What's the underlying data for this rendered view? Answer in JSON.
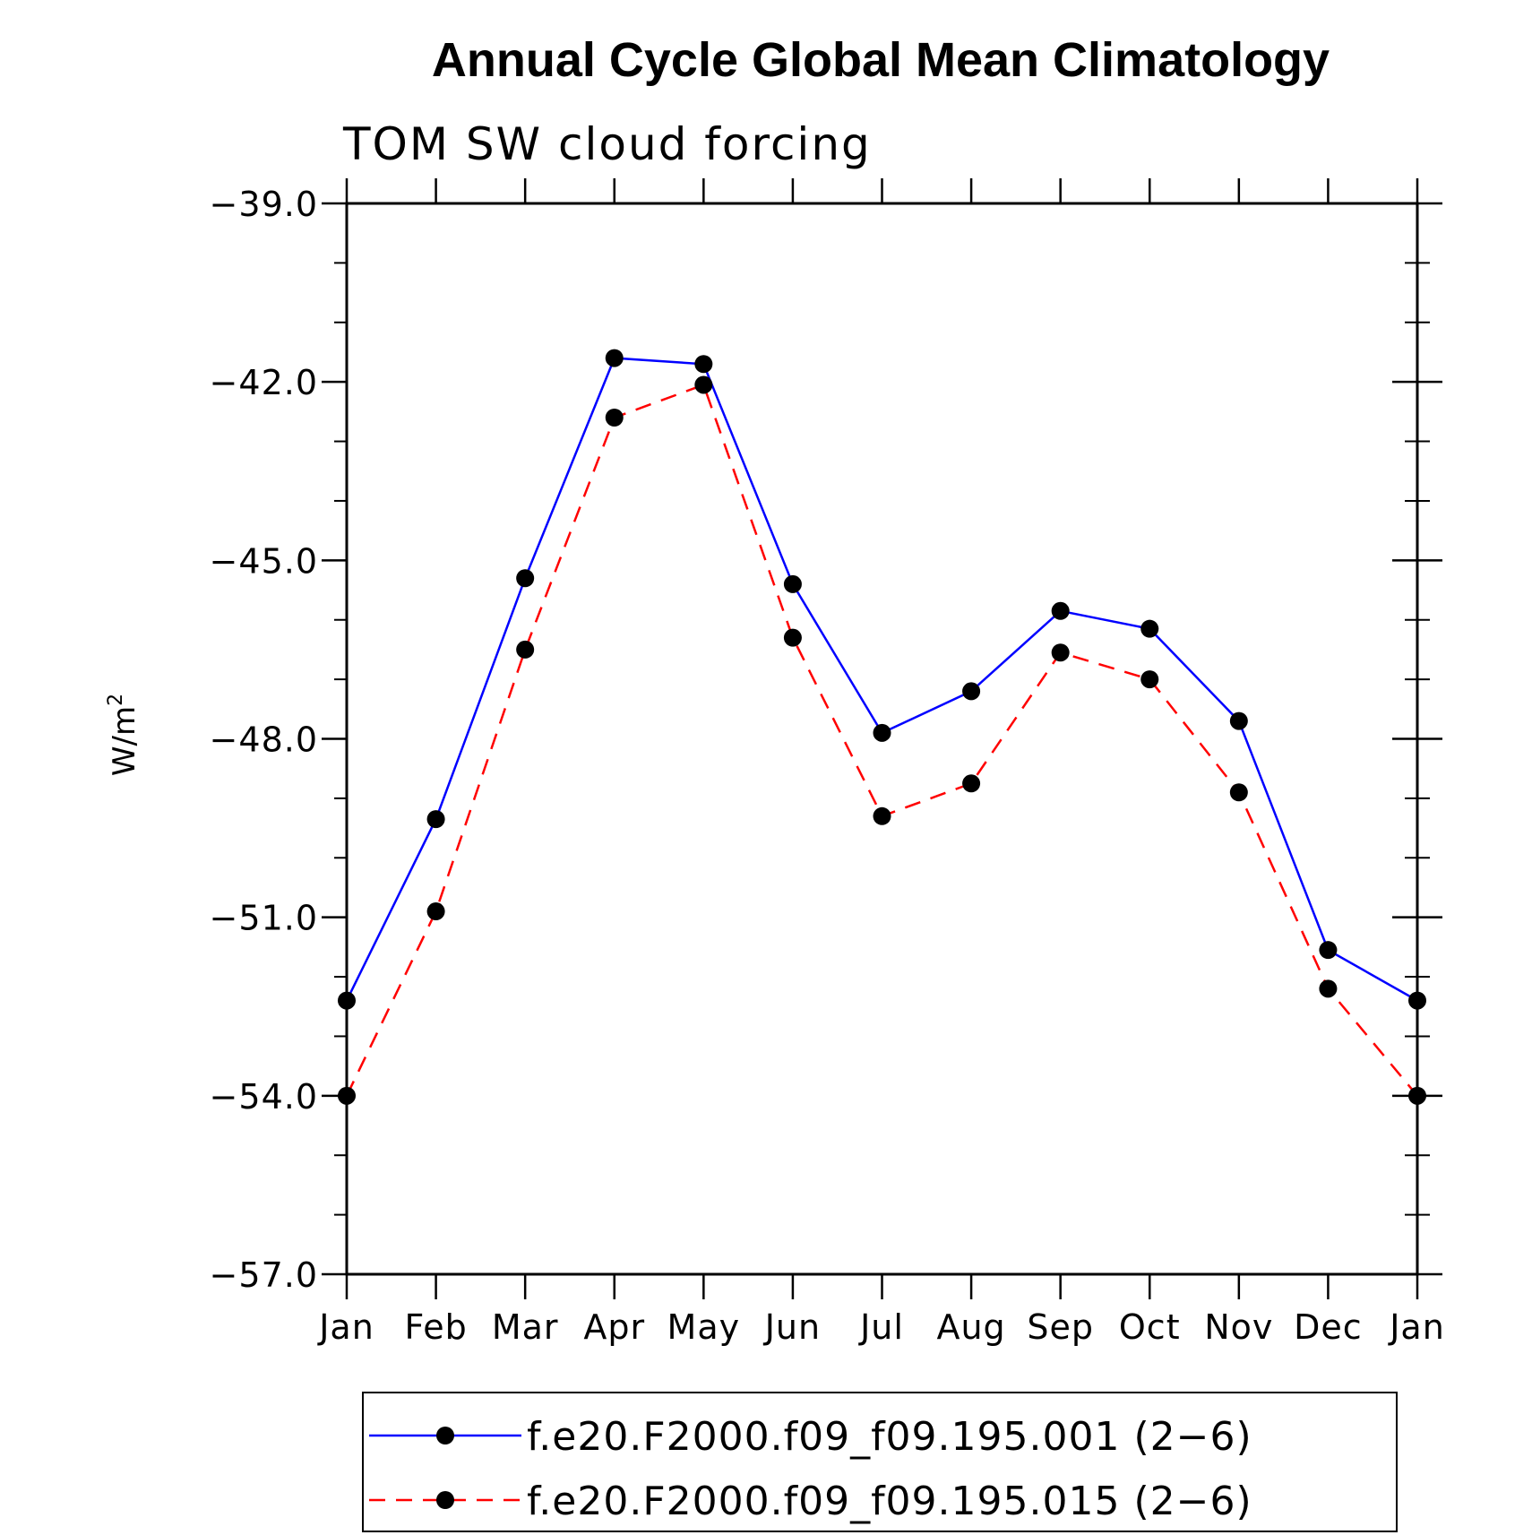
{
  "chart_data": {
    "type": "line",
    "title": "Annual Cycle Global Mean Climatology",
    "subtitle": "TOM SW cloud forcing",
    "ylabel": "W/m",
    "ylabel_superscript": "2",
    "xlabel": "",
    "categories": [
      "Jan",
      "Feb",
      "Mar",
      "Apr",
      "May",
      "Jun",
      "Jul",
      "Aug",
      "Sep",
      "Oct",
      "Nov",
      "Dec",
      "Jan"
    ],
    "ylim": [
      -57.0,
      -39.0
    ],
    "yticks": [
      -39.0,
      -42.0,
      -45.0,
      -48.0,
      -51.0,
      -54.0,
      -57.0
    ],
    "ytick_labels": [
      "−39.0",
      "−42.0",
      "−45.0",
      "−48.0",
      "−51.0",
      "−54.0",
      "−57.0"
    ],
    "grid": false,
    "legend_position": "bottom",
    "series": [
      {
        "name": "f.e20.F2000.f09_f09.195.001 (2−6)",
        "color": "#0000ff",
        "dash": "solid",
        "marker": "filled-circle",
        "values": [
          -52.4,
          -49.35,
          -45.3,
          -41.6,
          -41.7,
          -45.4,
          -47.9,
          -47.2,
          -45.85,
          -46.15,
          -47.7,
          -51.55,
          -52.4
        ]
      },
      {
        "name": "f.e20.F2000.f09_f09.195.015 (2−6)",
        "color": "#ff0000",
        "dash": "dashed",
        "marker": "filled-circle",
        "values": [
          -54.0,
          -50.9,
          -46.5,
          -42.6,
          -42.05,
          -46.3,
          -49.3,
          -48.75,
          -46.55,
          -47.0,
          -48.9,
          -52.2,
          -54.0
        ]
      }
    ]
  }
}
